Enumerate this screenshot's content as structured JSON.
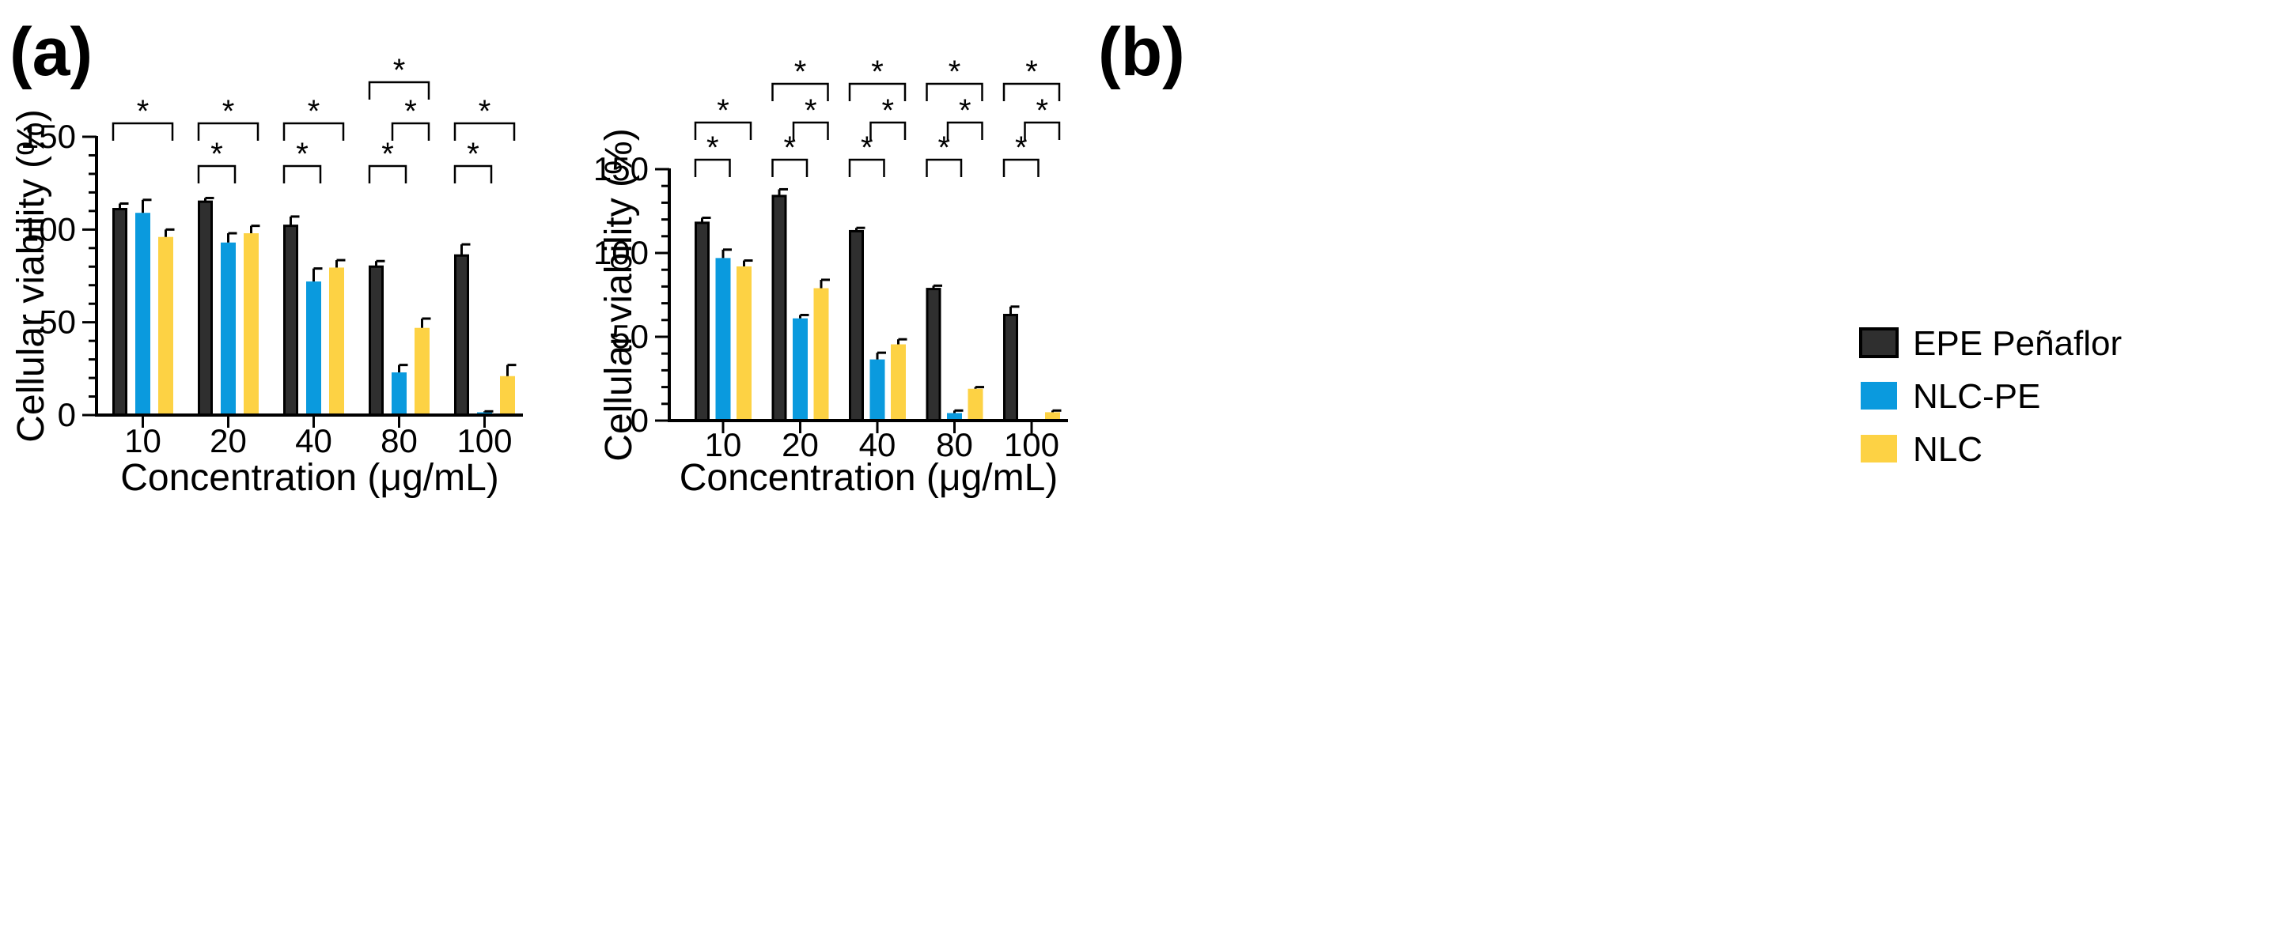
{
  "legend": {
    "items": [
      {
        "label": "EPE Peñaflor",
        "color": "#2f2f2f"
      },
      {
        "label": "NLC-PE",
        "color": "#0a9ade"
      },
      {
        "label": "NLC",
        "color": "#fdd244"
      }
    ]
  },
  "chart_data": [
    {
      "panel_label": "(a)",
      "type": "bar",
      "xlabel": "Concentration (μg/mL)",
      "ylabel": "Cellular viability (%)",
      "ylim": [
        0,
        150
      ],
      "yticks": [
        "0",
        "50",
        "100",
        "150"
      ],
      "categories": [
        "10",
        "20",
        "40",
        "80",
        "100"
      ],
      "series": [
        {
          "name": "EPE Peñaflor",
          "values": [
            111,
            115,
            102,
            80,
            86
          ],
          "errors": [
            3,
            2,
            5,
            3,
            6
          ]
        },
        {
          "name": "NLC-PE",
          "values": [
            109,
            93,
            72,
            23,
            1.5
          ],
          "errors": [
            7,
            5,
            7,
            4,
            0.5
          ]
        },
        {
          "name": "NLC",
          "values": [
            96,
            98,
            79.5,
            47,
            21
          ],
          "errors": [
            4,
            4,
            4,
            5,
            6
          ]
        }
      ],
      "significance": [
        {
          "cat": 0,
          "from": 0,
          "to": 2,
          "label": "*"
        },
        {
          "cat": 1,
          "from": 0,
          "to": 1,
          "label": "*"
        },
        {
          "cat": 1,
          "from": 0,
          "to": 2,
          "label": "*"
        },
        {
          "cat": 2,
          "from": 0,
          "to": 1,
          "label": "*"
        },
        {
          "cat": 2,
          "from": 0,
          "to": 2,
          "label": "*"
        },
        {
          "cat": 3,
          "from": 0,
          "to": 1,
          "label": "*"
        },
        {
          "cat": 3,
          "from": 1,
          "to": 2,
          "label": "*"
        },
        {
          "cat": 3,
          "from": 0,
          "to": 2,
          "label": "*"
        },
        {
          "cat": 4,
          "from": 0,
          "to": 1,
          "label": "*"
        },
        {
          "cat": 4,
          "from": 0,
          "to": 2,
          "label": "*"
        }
      ]
    },
    {
      "panel_label": "(b)",
      "type": "bar",
      "xlabel": "Concentration (μg/mL)",
      "ylabel": "Cellular viability (%)",
      "ylim": [
        0,
        150
      ],
      "yticks": [
        "0",
        "50",
        "100",
        "150"
      ],
      "categories": [
        "10",
        "20",
        "40",
        "80",
        "100"
      ],
      "series": [
        {
          "name": "EPE Peñaflor",
          "values": [
            118,
            134,
            113,
            78.5,
            63
          ],
          "errors": [
            3,
            4,
            2,
            2,
            5
          ]
        },
        {
          "name": "NLC-PE",
          "values": [
            97,
            61,
            36.5,
            4.5,
            0
          ],
          "errors": [
            5,
            2,
            4,
            1.5,
            0
          ]
        },
        {
          "name": "NLC",
          "values": [
            92,
            79,
            45.5,
            19,
            5
          ],
          "errors": [
            3.5,
            5,
            3,
            1,
            1
          ]
        }
      ],
      "significance": [
        {
          "cat": 0,
          "from": 0,
          "to": 1,
          "label": "*"
        },
        {
          "cat": 0,
          "from": 0,
          "to": 2,
          "label": "*"
        },
        {
          "cat": 1,
          "from": 0,
          "to": 1,
          "label": "*"
        },
        {
          "cat": 1,
          "from": 1,
          "to": 2,
          "label": "*"
        },
        {
          "cat": 1,
          "from": 0,
          "to": 2,
          "label": "*"
        },
        {
          "cat": 2,
          "from": 0,
          "to": 1,
          "label": "*"
        },
        {
          "cat": 2,
          "from": 1,
          "to": 2,
          "label": "*"
        },
        {
          "cat": 2,
          "from": 0,
          "to": 2,
          "label": "*"
        },
        {
          "cat": 3,
          "from": 0,
          "to": 1,
          "label": "*"
        },
        {
          "cat": 3,
          "from": 1,
          "to": 2,
          "label": "*"
        },
        {
          "cat": 3,
          "from": 0,
          "to": 2,
          "label": "*"
        },
        {
          "cat": 4,
          "from": 0,
          "to": 1,
          "label": "*"
        },
        {
          "cat": 4,
          "from": 1,
          "to": 2,
          "label": "*"
        },
        {
          "cat": 4,
          "from": 0,
          "to": 2,
          "label": "*"
        }
      ]
    }
  ]
}
